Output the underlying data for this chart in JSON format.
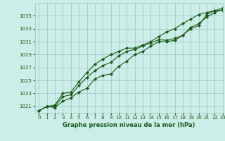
{
  "title": "Graphe pression niveau de la mer (hPa)",
  "background_color": "#cceee8",
  "grid_color": "#aacccc",
  "line_color": "#1a5c1a",
  "xlim": [
    -0.5,
    23
  ],
  "ylim": [
    1020.0,
    1037.0
  ],
  "yticks": [
    1021,
    1023,
    1025,
    1027,
    1029,
    1031,
    1033,
    1035
  ],
  "xticks": [
    0,
    1,
    2,
    3,
    4,
    5,
    6,
    7,
    8,
    9,
    10,
    11,
    12,
    13,
    14,
    15,
    16,
    17,
    18,
    19,
    20,
    21,
    22,
    23
  ],
  "hours": [
    0,
    1,
    2,
    3,
    4,
    5,
    6,
    7,
    8,
    9,
    10,
    11,
    12,
    13,
    14,
    15,
    16,
    17,
    18,
    19,
    20,
    21,
    22,
    23
  ],
  "line1": [
    1020.3,
    1021.0,
    1020.8,
    1021.8,
    1022.3,
    1023.2,
    1023.8,
    1025.2,
    1025.8,
    1026.0,
    1027.2,
    1028.0,
    1029.0,
    1029.5,
    1030.3,
    1031.0,
    1031.0,
    1031.2,
    1032.0,
    1033.0,
    1033.5,
    1035.2,
    1035.8,
    1036.2
  ],
  "line2": [
    1020.3,
    1021.0,
    1021.0,
    1022.5,
    1022.8,
    1024.2,
    1025.5,
    1026.5,
    1027.3,
    1027.8,
    1028.8,
    1029.5,
    1029.8,
    1030.3,
    1030.8,
    1031.3,
    1031.2,
    1031.5,
    1032.0,
    1033.2,
    1033.8,
    1034.8,
    1035.5,
    1036.0
  ],
  "line3": [
    1020.3,
    1021.0,
    1021.2,
    1023.0,
    1023.2,
    1024.8,
    1026.2,
    1027.5,
    1028.3,
    1029.0,
    1029.5,
    1030.0,
    1030.0,
    1030.5,
    1031.0,
    1031.8,
    1032.5,
    1033.0,
    1033.8,
    1034.5,
    1035.2,
    1035.5,
    1035.8,
    1035.8
  ]
}
